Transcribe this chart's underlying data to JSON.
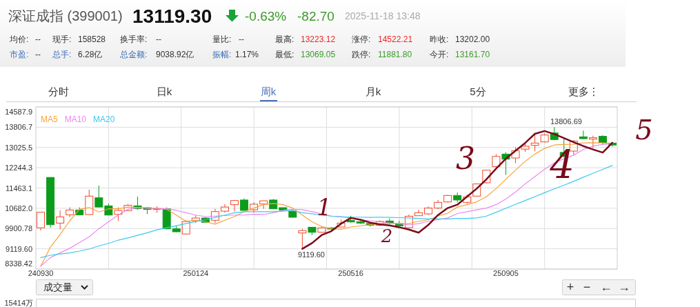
{
  "chart_data": {
    "type": "candlestick",
    "title": "深证成指 (399001)",
    "categories": [
      "240930",
      null,
      null,
      null,
      null,
      null,
      null,
      null,
      null,
      null,
      null,
      null,
      null,
      null,
      null,
      null,
      "250124",
      null,
      null,
      null,
      null,
      null,
      null,
      null,
      null,
      null,
      null,
      null,
      null,
      null,
      null,
      null,
      "250516",
      null,
      null,
      null,
      null,
      null,
      null,
      null,
      null,
      null,
      null,
      null,
      null,
      null,
      null,
      null,
      "250905",
      null,
      null,
      null,
      null,
      null,
      null,
      null,
      null,
      null,
      null,
      null
    ],
    "ohlc": [
      [
        9930,
        10529,
        9820,
        10529
      ],
      [
        11870,
        11880,
        9935,
        10050
      ],
      [
        10110,
        10600,
        9865,
        10350
      ],
      [
        10430,
        10715,
        10335,
        10615
      ],
      [
        10615,
        10715,
        10430,
        10430
      ],
      [
        10440,
        11400,
        10430,
        11150
      ],
      [
        11085,
        11555,
        10715,
        10730
      ],
      [
        10775,
        10865,
        10405,
        10420
      ],
      [
        10450,
        10715,
        10200,
        10600
      ],
      [
        10590,
        10845,
        10570,
        10795
      ],
      [
        10775,
        11130,
        10625,
        10670
      ],
      [
        10705,
        10715,
        10460,
        10640
      ],
      [
        10650,
        10760,
        10510,
        10665
      ],
      [
        10660,
        10715,
        9865,
        9890
      ],
      [
        9890,
        10005,
        9760,
        9775
      ],
      [
        9690,
        10225,
        9670,
        10170
      ],
      [
        10200,
        10420,
        10120,
        10305
      ],
      [
        10305,
        10330,
        10130,
        10140
      ],
      [
        10220,
        10660,
        10110,
        10555
      ],
      [
        10570,
        10840,
        10510,
        10730
      ],
      [
        10820,
        10990,
        10555,
        10980
      ],
      [
        11000,
        11060,
        10590,
        10600
      ],
      [
        10625,
        10910,
        10510,
        10840
      ],
      [
        10845,
        10970,
        10660,
        10970
      ],
      [
        11000,
        11040,
        10660,
        10660
      ],
      [
        10705,
        10705,
        10575,
        10615
      ],
      [
        10570,
        10600,
        10315,
        10335
      ],
      [
        9730,
        9890,
        9119.6,
        9820
      ],
      [
        9950,
        9960,
        9650,
        9755
      ],
      [
        9760,
        9980,
        9740,
        9930
      ],
      [
        9925,
        9950,
        9790,
        9880
      ],
      [
        9960,
        10245,
        9950,
        10110
      ],
      [
        10215,
        10395,
        10130,
        10155
      ],
      [
        10165,
        10210,
        10075,
        10110
      ],
      [
        10095,
        10130,
        9975,
        10030
      ],
      [
        10025,
        10215,
        9995,
        10175
      ],
      [
        10190,
        10290,
        10065,
        10100
      ],
      [
        10095,
        10200,
        9975,
        10005
      ],
      [
        9935,
        10440,
        9920,
        10375
      ],
      [
        10395,
        10625,
        10395,
        10510
      ],
      [
        10465,
        10750,
        10420,
        10690
      ],
      [
        10690,
        11000,
        10645,
        10910
      ],
      [
        10925,
        11200,
        10900,
        11175
      ],
      [
        11175,
        11290,
        10905,
        11000
      ],
      [
        10910,
        11210,
        10855,
        11120
      ],
      [
        11150,
        11635,
        11130,
        11620
      ],
      [
        11665,
        12170,
        11635,
        12150
      ],
      [
        12285,
        12770,
        12255,
        12680
      ],
      [
        12770,
        12840,
        11970,
        12575
      ],
      [
        12620,
        13035,
        12415,
        12905
      ],
      [
        12960,
        13170,
        12860,
        13075
      ],
      [
        13110,
        13525,
        12875,
        13195
      ],
      [
        13240,
        13565,
        13215,
        13505
      ],
      [
        13585,
        13806.69,
        13300,
        13330
      ],
      [
        12835,
        13375,
        12640,
        12680
      ],
      [
        12885,
        13305,
        12755,
        13275
      ],
      [
        13435,
        13675,
        13345,
        13365
      ],
      [
        13345,
        13480,
        13000,
        13400
      ],
      [
        13455,
        13500,
        13145,
        13215
      ],
      [
        13195,
        13225,
        13055,
        13119.3
      ]
    ],
    "colors": [
      "#f04a2a",
      "#0c9c1c",
      "#f04a2a",
      "#f04a2a",
      "#0c9c1c",
      "#f04a2a",
      "#0c9c1c",
      "#0c9c1c",
      "#f04a2a",
      "#f04a2a",
      "#0c9c1c",
      "#0c9c1c",
      "#f04a2a",
      "#0c9c1c",
      "#0c9c1c",
      "#f04a2a",
      "#f04a2a",
      "#0c9c1c",
      "#f04a2a",
      "#f04a2a",
      "#f04a2a",
      "#0c9c1c",
      "#f04a2a",
      "#f04a2a",
      "#0c9c1c",
      "#0c9c1c",
      "#0c9c1c",
      "#f04a2a",
      "#0c9c1c",
      "#f04a2a",
      "#0c9c1c",
      "#f04a2a",
      "#0c9c1c",
      "#0c9c1c",
      "#0c9c1c",
      "#f04a2a",
      "#0c9c1c",
      "#0c9c1c",
      "#f04a2a",
      "#f04a2a",
      "#f04a2a",
      "#f04a2a",
      "#f04a2a",
      "#0c9c1c",
      "#f04a2a",
      "#f04a2a",
      "#f04a2a",
      "#f04a2a",
      "#0c9c1c",
      "#f04a2a",
      "#f04a2a",
      "#f04a2a",
      "#f04a2a",
      "#0c9c1c",
      "#0c9c1c",
      "#f04a2a",
      "#0c9c1c",
      "#f04a2a",
      "#0c9c1c",
      "#0c9c1c"
    ],
    "series": [
      {
        "name": "MA5",
        "type": "line",
        "color": "#f8a33a",
        "values": [
          8450,
          9180,
          9670,
          10200,
          10640,
          10710,
          10540,
          10660,
          10660,
          10730,
          10710,
          10690,
          10670,
          10640,
          10420,
          10180,
          10220,
          10160,
          10070,
          10220,
          10360,
          10550,
          10690,
          10820,
          10870,
          10820,
          10690,
          10420,
          10160,
          9980,
          9890,
          9870,
          9960,
          10000,
          10050,
          10090,
          10110,
          10090,
          10090,
          10180,
          10240,
          10380,
          10490,
          10730,
          10820,
          10930,
          11130,
          11440,
          11800,
          12150,
          12490,
          12770,
          12990,
          13120,
          13140,
          13150,
          13200,
          13210,
          13200,
          13170
        ]
      },
      {
        "name": "MA10",
        "type": "line",
        "color": "#ee88ee",
        "values": [
          8450,
          8780,
          8960,
          9140,
          9360,
          9580,
          9890,
          10160,
          10420,
          10640,
          10710,
          10690,
          10680,
          10660,
          10600,
          10510,
          10420,
          10360,
          10380,
          10400,
          10420,
          10420,
          10450,
          10440,
          10510,
          10600,
          10640,
          10630,
          10550,
          10470,
          10380,
          10350,
          10310,
          10240,
          10200,
          10160,
          10110,
          10090,
          10040,
          10090,
          10180,
          10240,
          10310,
          10480,
          10550,
          10620,
          10690,
          10820,
          11040,
          11310,
          11620,
          11900,
          12190,
          12430,
          12590,
          12730,
          12950,
          13080,
          13140,
          13170
        ]
      },
      {
        "name": "MA20",
        "type": "line",
        "color": "#3cc8ef",
        "values": [
          8780,
          8870,
          8920,
          8960,
          9030,
          9110,
          9230,
          9330,
          9450,
          9540,
          9640,
          9740,
          9850,
          9930,
          10010,
          10090,
          10170,
          10240,
          10330,
          10420,
          10510,
          10550,
          10550,
          10550,
          10550,
          10570,
          10600,
          10510,
          10470,
          10420,
          10380,
          10360,
          10340,
          10340,
          10330,
          10340,
          10330,
          10320,
          10310,
          10290,
          10270,
          10270,
          10270,
          10290,
          10290,
          10310,
          10380,
          10530,
          10680,
          10830,
          10980,
          11130,
          11280,
          11430,
          11570,
          11720,
          11880,
          12030,
          12180,
          12330
        ]
      },
      {
        "type": "line",
        "color": "#7a0a1a",
        "values": [
          null,
          null,
          null,
          null,
          null,
          null,
          null,
          null,
          null,
          null,
          null,
          null,
          null,
          null,
          null,
          null,
          null,
          null,
          null,
          null,
          null,
          null,
          null,
          null,
          null,
          null,
          null,
          9120,
          9340,
          9650,
          9800,
          10090,
          10310,
          10240,
          10130,
          10060,
          10020,
          9950,
          9860,
          9740,
          10040,
          10420,
          10690,
          10820,
          11130,
          11440,
          11800,
          12210,
          12590,
          12900,
          13200,
          13550,
          13660,
          13540,
          13390,
          13230,
          13080,
          12950,
          12830,
          13210
        ]
      }
    ],
    "ylim": [
      8338.42,
      14587.9
    ],
    "yticks": [
      {
        "value": 8338.42,
        "label": "8338.42"
      },
      {
        "value": 9119.6,
        "label": "9119.60"
      },
      {
        "value": 9900.78,
        "label": "9900.78"
      },
      {
        "value": 10682,
        "label": "10682.0"
      },
      11463.1,
      12244.3,
      13025.5,
      13806.7,
      14587.9
    ],
    "grid": true,
    "legend": "top left",
    "annotations": [
      "13119.30",
      "-0.63%",
      "-82.70",
      "2025-11-18 13:48",
      "均价:",
      "--",
      "现手:",
      "158528",
      "换手率:",
      "--",
      "量比:",
      "--",
      "最高:",
      "13223.12",
      "涨停:",
      "14522.21",
      "昨收:",
      "13202.00",
      "市盈:",
      "--",
      "总手:",
      "6.28亿",
      "总金额:",
      "9038.92亿",
      "振幅:",
      "1.17%",
      "最低:",
      "13069.05",
      "跌停:",
      "11881.80",
      "今开:",
      "13161.70",
      "分时",
      "日k",
      "周k",
      "月k",
      "5分",
      "更多⋮",
      "成交量",
      "+",
      "−",
      "←",
      "→",
      "15414万",
      "9119.60",
      "13806.69",
      "1",
      "2",
      "3",
      "4",
      "5"
    ]
  }
}
